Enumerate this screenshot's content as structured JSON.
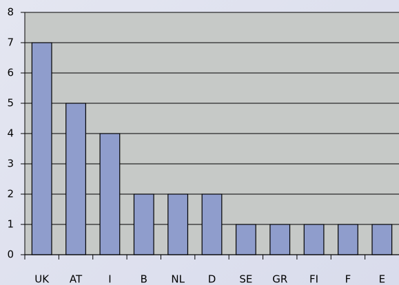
{
  "chart_data": {
    "type": "bar",
    "categories": [
      "UK",
      "AT",
      "I",
      "B",
      "NL",
      "D",
      "SE",
      "GR",
      "FI",
      "F",
      "E"
    ],
    "values": [
      7,
      5,
      4,
      2,
      2,
      2,
      1,
      1,
      1,
      1,
      1
    ],
    "color": "#8f9dcc",
    "ylim": [
      0,
      8
    ],
    "yticks": [
      0,
      1,
      2,
      3,
      4,
      5,
      6,
      7,
      8
    ],
    "grid": true
  }
}
